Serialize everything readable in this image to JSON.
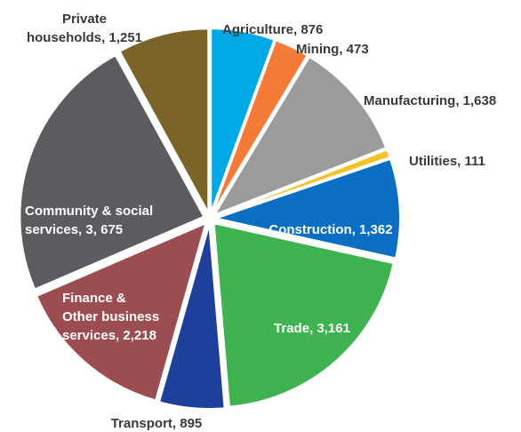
{
  "chart_data": {
    "type": "pie",
    "title": "",
    "slices": [
      {
        "label_lines": [
          "Agriculture, 876"
        ],
        "value": 876,
        "color": "#00a8e6",
        "label_pos": "outside"
      },
      {
        "label_lines": [
          "Mining, 473"
        ],
        "value": 473,
        "color": "#f37b37",
        "label_pos": "outside"
      },
      {
        "label_lines": [
          "Manufacturing, 1,638"
        ],
        "value": 1638,
        "color": "#9b9b9b",
        "label_pos": "outside"
      },
      {
        "label_lines": [
          "Utilities, 111"
        ],
        "value": 111,
        "color": "#f3c327",
        "label_pos": "outside"
      },
      {
        "label_lines": [
          "Construction, 1,362"
        ],
        "value": 1362,
        "color": "#0a6fc2",
        "label_pos": "inside"
      },
      {
        "label_lines": [
          "Trade, 3,161"
        ],
        "value": 3161,
        "color": "#3fb34f",
        "label_pos": "inside"
      },
      {
        "label_lines": [
          "Transport, 895"
        ],
        "value": 895,
        "color": "#1e3f9a",
        "label_pos": "outside"
      },
      {
        "label_lines": [
          "Finance &",
          "Other business",
          "services, 2,218"
        ],
        "value": 2218,
        "color": "#9c4d52",
        "label_pos": "inside"
      },
      {
        "label_lines": [
          "Community & social",
          "services, 3, 675"
        ],
        "value": 3675,
        "color": "#5a5c5f",
        "label_pos": "inside"
      },
      {
        "label_lines": [
          "Private",
          "households,  1,251"
        ],
        "value": 1251,
        "color": "#7b6427",
        "label_pos": "outside"
      }
    ]
  }
}
